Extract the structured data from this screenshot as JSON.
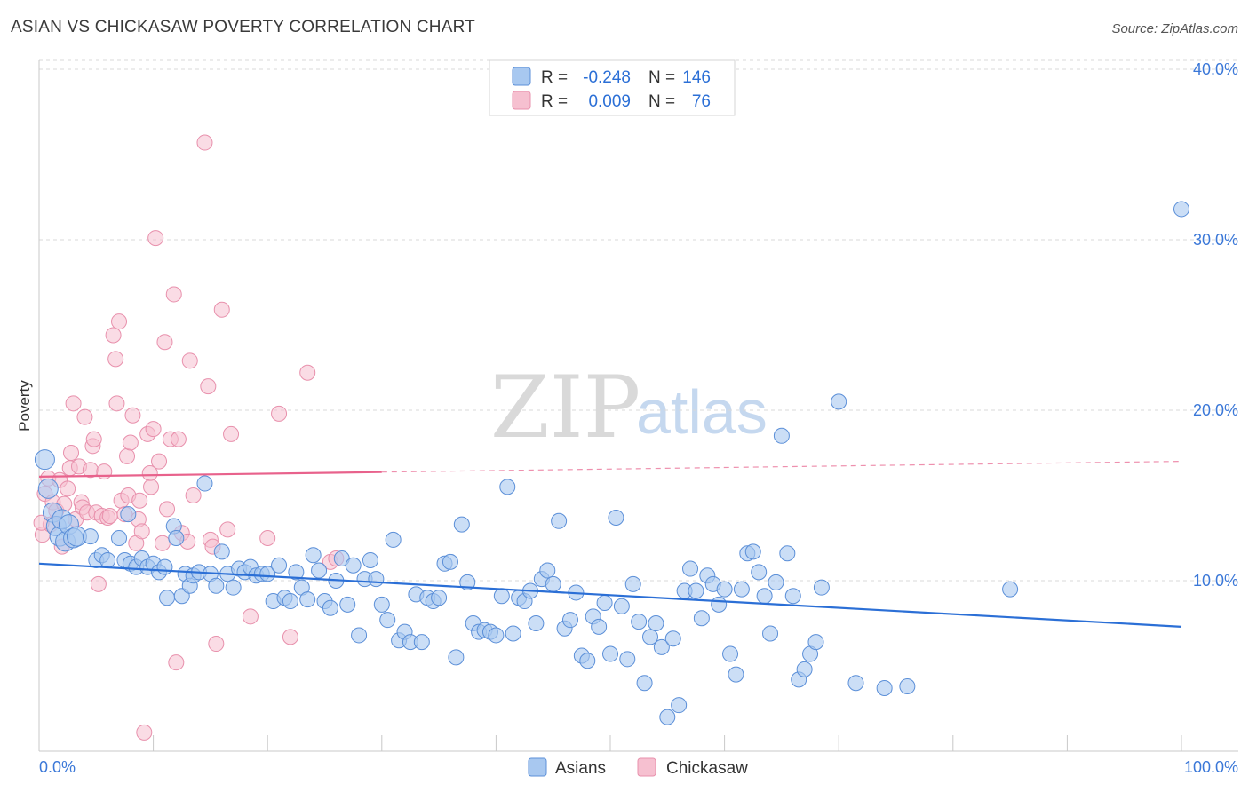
{
  "title": "ASIAN VS CHICKASAW POVERTY CORRELATION CHART",
  "source": "Source: ZipAtlas.com",
  "watermark": {
    "zip": "ZIP",
    "atlas": "atlas"
  },
  "stats": {
    "asian": {
      "r_label": "R =",
      "r_value": "-0.248",
      "n_label": "N =",
      "n_value": "146"
    },
    "chickasaw": {
      "r_label": "R =",
      "r_value": "0.009",
      "n_label": "N =",
      "n_value": "76"
    }
  },
  "legend": {
    "asian": "Asians",
    "chickasaw": "Chickasaw"
  },
  "colors": {
    "asian_fill": "#a8c8f0",
    "asian_stroke": "#5b8fd8",
    "asian_line": "#2b6fd6",
    "chick_fill": "#f6c0d0",
    "chick_stroke": "#e890ac",
    "chick_line": "#e8628c",
    "tick": "#3b78d8",
    "grid": "#d8d8d8"
  },
  "chart_data": {
    "type": "scatter",
    "title": "ASIAN VS CHICKASAW POVERTY CORRELATION CHART",
    "ylabel": "Poverty",
    "xlabel": "",
    "xlim": [
      0,
      100
    ],
    "ylim": [
      0,
      40
    ],
    "x_tick_labels": [
      "0.0%",
      "100.0%"
    ],
    "y_ticks": [
      10,
      20,
      30,
      40
    ],
    "y_tick_labels": [
      "10.0%",
      "20.0%",
      "30.0%",
      "40.0%"
    ],
    "grid": true,
    "legend_position": "bottom-center",
    "series": [
      {
        "name": "Asians",
        "r": -0.248,
        "n": 146,
        "trend": {
          "x": [
            0,
            100
          ],
          "y": [
            11.0,
            7.3
          ]
        },
        "points": [
          [
            0.5,
            17.1
          ],
          [
            0.8,
            15.4
          ],
          [
            1.2,
            14.0
          ],
          [
            1.5,
            13.2
          ],
          [
            1.8,
            12.6
          ],
          [
            2.0,
            13.6
          ],
          [
            2.3,
            12.3
          ],
          [
            2.6,
            13.3
          ],
          [
            3.0,
            12.5
          ],
          [
            3.3,
            12.6
          ],
          [
            4.5,
            12.6
          ],
          [
            5.0,
            11.2
          ],
          [
            5.5,
            11.5
          ],
          [
            6.0,
            11.2
          ],
          [
            7.0,
            12.5
          ],
          [
            7.5,
            11.2
          ],
          [
            7.8,
            13.9
          ],
          [
            8.0,
            11.0
          ],
          [
            8.5,
            10.8
          ],
          [
            9.0,
            11.3
          ],
          [
            9.5,
            10.8
          ],
          [
            10.0,
            11.0
          ],
          [
            10.5,
            10.5
          ],
          [
            11.0,
            10.8
          ],
          [
            11.2,
            9.0
          ],
          [
            11.8,
            13.2
          ],
          [
            12.0,
            12.5
          ],
          [
            12.5,
            9.1
          ],
          [
            12.8,
            10.4
          ],
          [
            13.2,
            9.7
          ],
          [
            13.5,
            10.3
          ],
          [
            14.0,
            10.5
          ],
          [
            14.5,
            15.7
          ],
          [
            15.0,
            10.4
          ],
          [
            15.5,
            9.7
          ],
          [
            16.0,
            11.7
          ],
          [
            16.5,
            10.4
          ],
          [
            17.0,
            9.6
          ],
          [
            17.5,
            10.7
          ],
          [
            18.0,
            10.5
          ],
          [
            18.5,
            10.8
          ],
          [
            19.0,
            10.3
          ],
          [
            19.5,
            10.4
          ],
          [
            20.0,
            10.4
          ],
          [
            20.5,
            8.8
          ],
          [
            21.0,
            10.9
          ],
          [
            21.5,
            9.0
          ],
          [
            22.0,
            8.8
          ],
          [
            22.5,
            10.5
          ],
          [
            23.0,
            9.6
          ],
          [
            23.5,
            8.9
          ],
          [
            24.0,
            11.5
          ],
          [
            24.5,
            10.6
          ],
          [
            25.0,
            8.8
          ],
          [
            25.5,
            8.4
          ],
          [
            26.0,
            10.0
          ],
          [
            26.5,
            11.3
          ],
          [
            27.0,
            8.6
          ],
          [
            27.5,
            10.9
          ],
          [
            28.0,
            6.8
          ],
          [
            28.5,
            10.1
          ],
          [
            29.0,
            11.2
          ],
          [
            29.5,
            10.1
          ],
          [
            30.0,
            8.6
          ],
          [
            30.5,
            7.7
          ],
          [
            31.0,
            12.4
          ],
          [
            31.5,
            6.5
          ],
          [
            32.0,
            7.0
          ],
          [
            32.5,
            6.4
          ],
          [
            33.0,
            9.2
          ],
          [
            33.5,
            6.4
          ],
          [
            34.0,
            9.0
          ],
          [
            34.5,
            8.8
          ],
          [
            35.0,
            9.0
          ],
          [
            35.5,
            11.0
          ],
          [
            36.0,
            11.1
          ],
          [
            36.5,
            5.5
          ],
          [
            37.0,
            13.3
          ],
          [
            37.5,
            9.9
          ],
          [
            38.0,
            7.5
          ],
          [
            38.5,
            7.0
          ],
          [
            39.0,
            7.1
          ],
          [
            39.5,
            7.0
          ],
          [
            40.0,
            6.8
          ],
          [
            40.5,
            9.1
          ],
          [
            41.0,
            15.5
          ],
          [
            41.5,
            6.9
          ],
          [
            42.0,
            9.0
          ],
          [
            42.5,
            8.8
          ],
          [
            43.0,
            9.4
          ],
          [
            43.5,
            7.5
          ],
          [
            44.0,
            10.1
          ],
          [
            44.5,
            10.6
          ],
          [
            45.0,
            9.8
          ],
          [
            45.5,
            13.5
          ],
          [
            46.0,
            7.2
          ],
          [
            46.5,
            7.7
          ],
          [
            47.0,
            9.3
          ],
          [
            47.5,
            5.6
          ],
          [
            48.0,
            5.3
          ],
          [
            48.5,
            7.9
          ],
          [
            49.0,
            7.3
          ],
          [
            49.5,
            8.7
          ],
          [
            50.0,
            5.7
          ],
          [
            50.5,
            13.7
          ],
          [
            51.0,
            8.5
          ],
          [
            51.5,
            5.4
          ],
          [
            52.0,
            9.8
          ],
          [
            52.5,
            7.6
          ],
          [
            53.0,
            4.0
          ],
          [
            53.5,
            6.7
          ],
          [
            54.0,
            7.5
          ],
          [
            54.5,
            6.1
          ],
          [
            55.0,
            2.0
          ],
          [
            55.5,
            6.6
          ],
          [
            56.0,
            2.7
          ],
          [
            56.5,
            9.4
          ],
          [
            57.0,
            10.7
          ],
          [
            57.5,
            9.4
          ],
          [
            58.0,
            7.8
          ],
          [
            58.5,
            10.3
          ],
          [
            59.0,
            9.8
          ],
          [
            59.5,
            8.6
          ],
          [
            60.0,
            9.5
          ],
          [
            60.5,
            5.7
          ],
          [
            61.0,
            4.5
          ],
          [
            61.5,
            9.5
          ],
          [
            62.0,
            11.6
          ],
          [
            62.5,
            11.7
          ],
          [
            63.0,
            10.5
          ],
          [
            63.5,
            9.1
          ],
          [
            64.0,
            6.9
          ],
          [
            64.5,
            9.9
          ],
          [
            65.0,
            18.5
          ],
          [
            65.5,
            11.6
          ],
          [
            66.0,
            9.1
          ],
          [
            66.5,
            4.2
          ],
          [
            67.0,
            4.8
          ],
          [
            67.5,
            5.7
          ],
          [
            68.0,
            6.4
          ],
          [
            68.5,
            9.6
          ],
          [
            70.0,
            20.5
          ],
          [
            71.5,
            4.0
          ],
          [
            74.0,
            3.7
          ],
          [
            76.0,
            3.8
          ],
          [
            85.0,
            9.5
          ],
          [
            100.0,
            31.8
          ]
        ]
      },
      {
        "name": "Chickasaw",
        "r": 0.009,
        "n": 76,
        "trend": {
          "x": [
            0,
            100
          ],
          "y": [
            16.1,
            17.0
          ],
          "solid_until": 30
        },
        "points": [
          [
            0.3,
            12.7
          ],
          [
            0.5,
            15.1
          ],
          [
            0.8,
            16.0
          ],
          [
            1.0,
            13.3
          ],
          [
            1.2,
            14.6
          ],
          [
            1.5,
            14.1
          ],
          [
            1.8,
            15.9
          ],
          [
            2.0,
            12.0
          ],
          [
            2.2,
            14.5
          ],
          [
            2.5,
            15.4
          ],
          [
            2.7,
            16.6
          ],
          [
            2.8,
            17.5
          ],
          [
            3.0,
            20.4
          ],
          [
            3.2,
            13.6
          ],
          [
            3.5,
            16.7
          ],
          [
            3.7,
            14.6
          ],
          [
            3.8,
            14.3
          ],
          [
            4.0,
            19.6
          ],
          [
            4.2,
            14.0
          ],
          [
            4.5,
            16.5
          ],
          [
            4.7,
            17.9
          ],
          [
            4.8,
            18.3
          ],
          [
            5.0,
            14.0
          ],
          [
            5.2,
            9.8
          ],
          [
            5.5,
            13.8
          ],
          [
            5.7,
            16.4
          ],
          [
            6.0,
            13.7
          ],
          [
            6.2,
            13.8
          ],
          [
            6.5,
            24.4
          ],
          [
            6.7,
            23.0
          ],
          [
            6.8,
            20.4
          ],
          [
            7.0,
            25.2
          ],
          [
            7.2,
            14.7
          ],
          [
            7.5,
            13.9
          ],
          [
            7.7,
            17.3
          ],
          [
            7.8,
            15.0
          ],
          [
            8.0,
            18.1
          ],
          [
            8.2,
            19.7
          ],
          [
            8.5,
            12.2
          ],
          [
            8.7,
            13.6
          ],
          [
            8.8,
            14.7
          ],
          [
            9.0,
            12.9
          ],
          [
            9.2,
            1.1
          ],
          [
            9.5,
            18.6
          ],
          [
            9.7,
            16.3
          ],
          [
            9.8,
            15.5
          ],
          [
            10.0,
            18.9
          ],
          [
            10.2,
            30.1
          ],
          [
            10.5,
            17.0
          ],
          [
            10.8,
            12.2
          ],
          [
            11.0,
            24.0
          ],
          [
            11.2,
            14.2
          ],
          [
            11.5,
            18.3
          ],
          [
            11.8,
            26.8
          ],
          [
            12.0,
            5.2
          ],
          [
            12.2,
            18.3
          ],
          [
            12.5,
            12.8
          ],
          [
            13.0,
            12.3
          ],
          [
            13.2,
            22.9
          ],
          [
            13.5,
            15.0
          ],
          [
            14.5,
            35.7
          ],
          [
            14.8,
            21.4
          ],
          [
            15.0,
            12.4
          ],
          [
            15.2,
            12.0
          ],
          [
            15.5,
            6.3
          ],
          [
            16.0,
            25.9
          ],
          [
            16.5,
            13.0
          ],
          [
            16.8,
            18.6
          ],
          [
            18.5,
            7.9
          ],
          [
            20.0,
            12.5
          ],
          [
            21.0,
            19.8
          ],
          [
            22.0,
            6.7
          ],
          [
            23.5,
            22.2
          ],
          [
            25.5,
            11.1
          ],
          [
            26.0,
            11.3
          ],
          [
            0.2,
            13.4
          ]
        ]
      }
    ]
  }
}
